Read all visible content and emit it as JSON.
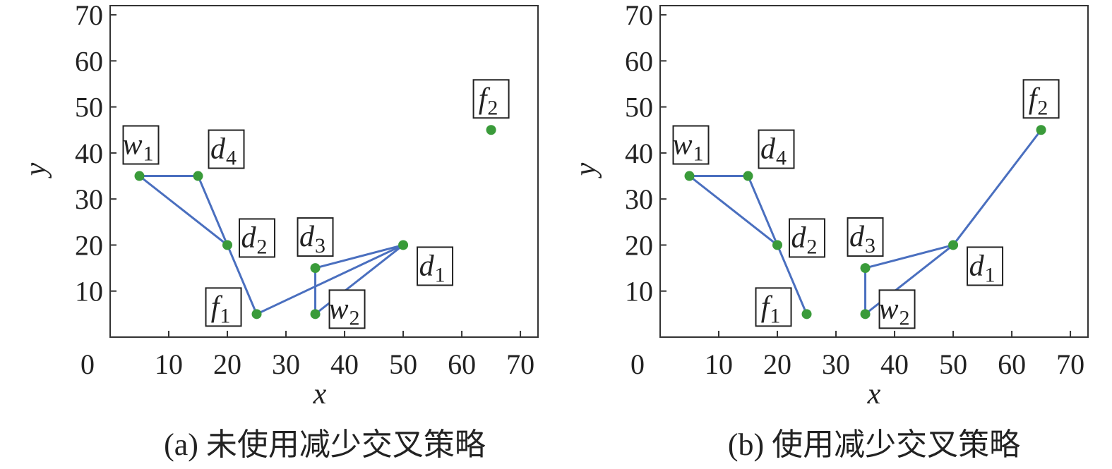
{
  "chart_data": [
    {
      "type": "scatter",
      "caption": "(a) 未使用减少交叉策略",
      "xlabel": "x",
      "ylabel": "y",
      "xlim": [
        0,
        73
      ],
      "ylim": [
        0,
        72
      ],
      "xticks": [
        0,
        10,
        20,
        30,
        40,
        50,
        60,
        70
      ],
      "yticks": [
        10,
        20,
        30,
        40,
        50,
        60,
        70
      ],
      "grid": false,
      "point_color": "#3a9b3a",
      "line_color": "#4a6fbf",
      "points": [
        {
          "id": "w1",
          "base": "w",
          "sub": "1",
          "x": 5,
          "y": 35
        },
        {
          "id": "d4",
          "base": "d",
          "sub": "4",
          "x": 15,
          "y": 35
        },
        {
          "id": "d2",
          "base": "d",
          "sub": "2",
          "x": 20,
          "y": 20
        },
        {
          "id": "f1",
          "base": "f",
          "sub": "1",
          "x": 25,
          "y": 5
        },
        {
          "id": "d3",
          "base": "d",
          "sub": "3",
          "x": 35,
          "y": 15
        },
        {
          "id": "w2",
          "base": "w",
          "sub": "2",
          "x": 35,
          "y": 5
        },
        {
          "id": "d1",
          "base": "d",
          "sub": "1",
          "x": 50,
          "y": 20
        },
        {
          "id": "f2",
          "base": "f",
          "sub": "2",
          "x": 65,
          "y": 45
        }
      ],
      "edges": [
        [
          "w1",
          "d4"
        ],
        [
          "d4",
          "d2"
        ],
        [
          "w1",
          "d2"
        ],
        [
          "d2",
          "f1"
        ],
        [
          "f1",
          "d1"
        ],
        [
          "d1",
          "d3"
        ],
        [
          "d3",
          "w2"
        ],
        [
          "w2",
          "d1"
        ]
      ]
    },
    {
      "type": "scatter",
      "caption": "(b) 使用减少交叉策略",
      "xlabel": "x",
      "ylabel": "y",
      "xlim": [
        0,
        73
      ],
      "ylim": [
        0,
        72
      ],
      "xticks": [
        0,
        10,
        20,
        30,
        40,
        50,
        60,
        70
      ],
      "yticks": [
        10,
        20,
        30,
        40,
        50,
        60,
        70
      ],
      "grid": false,
      "point_color": "#3a9b3a",
      "line_color": "#4a6fbf",
      "points": [
        {
          "id": "w1",
          "base": "w",
          "sub": "1",
          "x": 5,
          "y": 35
        },
        {
          "id": "d4",
          "base": "d",
          "sub": "4",
          "x": 15,
          "y": 35
        },
        {
          "id": "d2",
          "base": "d",
          "sub": "2",
          "x": 20,
          "y": 20
        },
        {
          "id": "f1",
          "base": "f",
          "sub": "1",
          "x": 25,
          "y": 5
        },
        {
          "id": "d3",
          "base": "d",
          "sub": "3",
          "x": 35,
          "y": 15
        },
        {
          "id": "w2",
          "base": "w",
          "sub": "2",
          "x": 35,
          "y": 5
        },
        {
          "id": "d1",
          "base": "d",
          "sub": "1",
          "x": 50,
          "y": 20
        },
        {
          "id": "f2",
          "base": "f",
          "sub": "2",
          "x": 65,
          "y": 45
        }
      ],
      "edges": [
        [
          "w1",
          "d4"
        ],
        [
          "d4",
          "d2"
        ],
        [
          "w1",
          "d2"
        ],
        [
          "d2",
          "f1"
        ],
        [
          "d1",
          "d3"
        ],
        [
          "d3",
          "w2"
        ],
        [
          "w2",
          "d1"
        ],
        [
          "d1",
          "f2"
        ]
      ]
    }
  ]
}
